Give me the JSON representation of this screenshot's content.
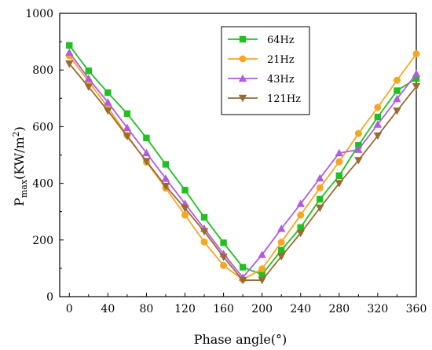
{
  "chart_data": {
    "type": "line",
    "xlabel": "Phase angle(°)",
    "ylabel": {
      "base": "P",
      "sub": "max",
      "unit_prefix": "(KW/m",
      "sup": "2",
      "unit_suffix": ")"
    },
    "xlim": [
      -10,
      360
    ],
    "ylim": [
      0,
      1000
    ],
    "xticks": [
      0,
      40,
      80,
      120,
      160,
      200,
      240,
      280,
      320,
      360
    ],
    "yticks": [
      0,
      200,
      400,
      600,
      800,
      1000
    ],
    "grid": false,
    "legend_position": "top-right",
    "x": [
      0,
      20,
      40,
      60,
      80,
      100,
      120,
      140,
      160,
      180,
      200,
      220,
      240,
      260,
      280,
      300,
      320,
      340,
      360
    ],
    "series": [
      {
        "name": "64Hz",
        "color": "#1fc11f",
        "marker": "square",
        "values": [
          887,
          797,
          720,
          646,
          560,
          467,
          376,
          280,
          190,
          104,
          78,
          164,
          244,
          344,
          427,
          534,
          634,
          727,
          770
        ]
      },
      {
        "name": "21Hz",
        "color": "#f5a623",
        "marker": "circle",
        "values": [
          850,
          760,
          668,
          570,
          475,
          383,
          288,
          193,
          110,
          60,
          98,
          192,
          288,
          384,
          476,
          576,
          668,
          764,
          857
        ]
      },
      {
        "name": "43Hz",
        "color": "#b05ce0",
        "marker": "triangle-up",
        "values": [
          862,
          770,
          686,
          596,
          507,
          417,
          328,
          240,
          151,
          68,
          148,
          240,
          328,
          418,
          507,
          519,
          608,
          698,
          787
        ]
      },
      {
        "name": "121Hz",
        "color": "#9a6a33",
        "marker": "triangle-down",
        "values": [
          822,
          740,
          656,
          566,
          478,
          390,
          312,
          230,
          140,
          58,
          58,
          142,
          224,
          313,
          400,
          481,
          568,
          656,
          742
        ]
      }
    ]
  }
}
